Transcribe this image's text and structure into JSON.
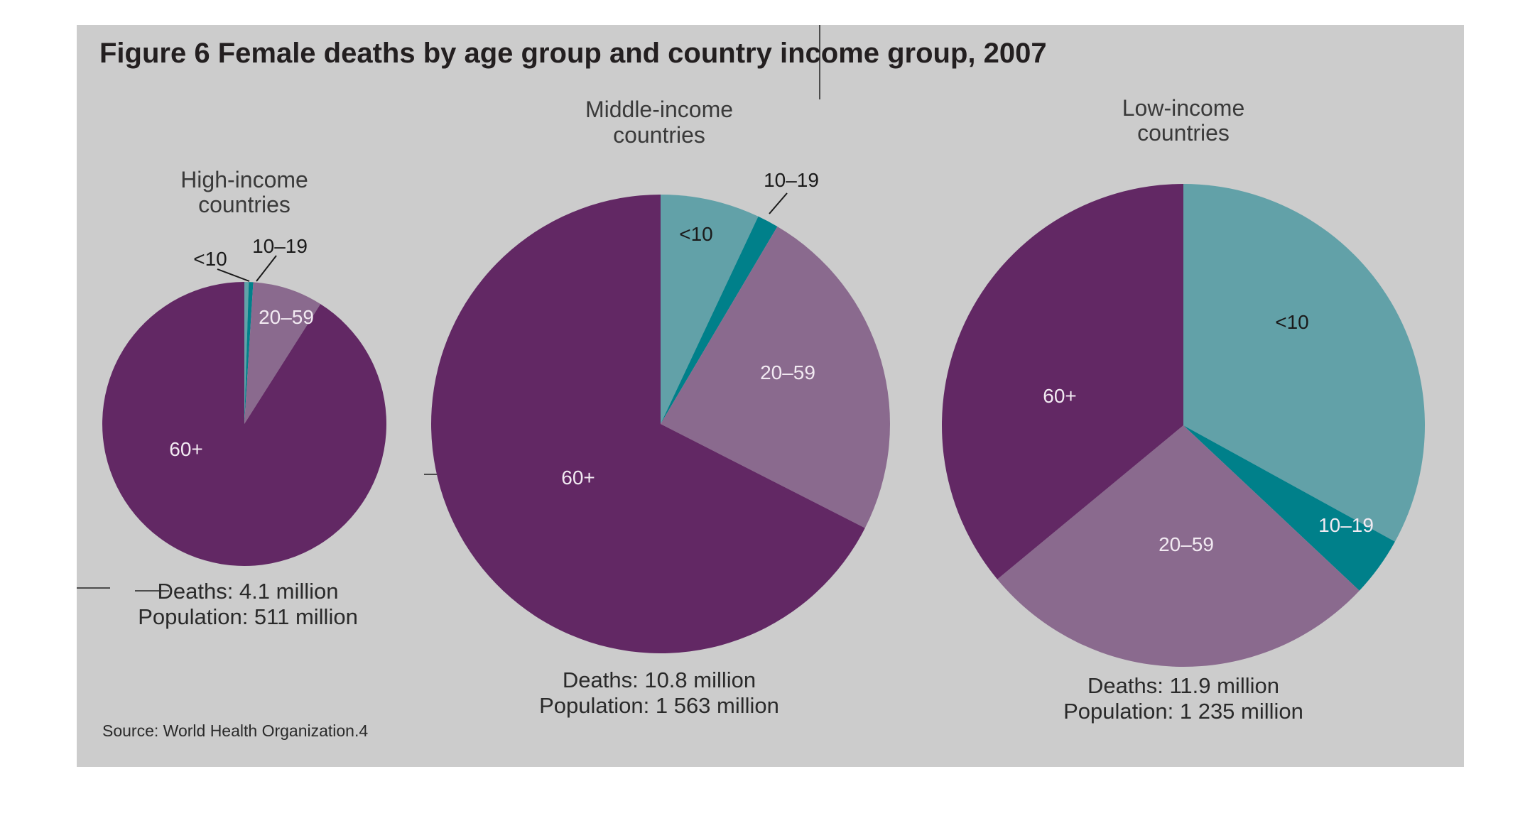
{
  "title": "Figure 6  Female deaths by age group and country income group, 2007",
  "source": "Source: World Health Organization.4",
  "colors": {
    "background": "#cccccc",
    "<10": "#62a1a8",
    "10–19": "#00808a",
    "20–59": "#8a6a8e",
    "60+": "#622864"
  },
  "chart_data": [
    {
      "type": "pie",
      "title_lines": [
        "High-income",
        "countries"
      ],
      "categories": [
        "<10",
        "10–19",
        "20–59",
        "60+"
      ],
      "values": [
        0.5,
        0.5,
        8,
        91
      ],
      "deaths": "Deaths: 4.1 million",
      "population": "Population: 511 million"
    },
    {
      "type": "pie",
      "title_lines": [
        "Middle-income",
        "countries"
      ],
      "categories": [
        "<10",
        "10–19",
        "20–59",
        "60+"
      ],
      "values": [
        7,
        1.5,
        24,
        67.5
      ],
      "deaths": "Deaths: 10.8 million",
      "population": "Population: 1 563 million"
    },
    {
      "type": "pie",
      "title_lines": [
        "Low-income",
        "countries"
      ],
      "categories": [
        "<10",
        "10–19",
        "20–59",
        "60+"
      ],
      "values": [
        33,
        4,
        27,
        36
      ],
      "deaths": "Deaths: 11.9 million",
      "population": "Population: 1 235 million"
    }
  ]
}
